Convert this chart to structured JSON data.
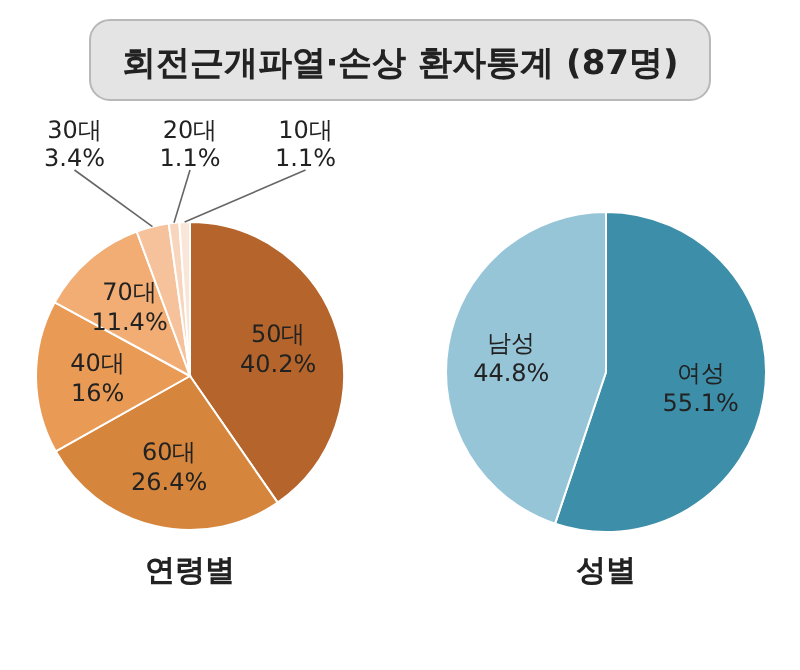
{
  "chart_data": [
    {
      "type": "pie",
      "title": "회전근개파열·손상 환자통계 (87명)",
      "xlabel": "연령별",
      "categories": [
        "50대",
        "60대",
        "40대",
        "70대",
        "30대",
        "20대",
        "10대"
      ],
      "values": [
        40.2,
        26.4,
        16,
        11.4,
        3.4,
        1.1,
        1.1
      ],
      "value_labels": [
        "40.2%",
        "26.4%",
        "16%",
        "11.4%",
        "3.4%",
        "1.1%",
        "1.1%"
      ],
      "colors": [
        "#b5652b",
        "#d5853c",
        "#e99a55",
        "#f1ad74",
        "#f5c29c",
        "#f8d5bd",
        "#fae6d8"
      ]
    },
    {
      "type": "pie",
      "xlabel": "성별",
      "categories": [
        "여성",
        "남성"
      ],
      "values": [
        55.1,
        44.8
      ],
      "value_labels": [
        "55.1%",
        "44.8%"
      ],
      "colors": [
        "#3d8fa9",
        "#96c5d8"
      ]
    }
  ]
}
